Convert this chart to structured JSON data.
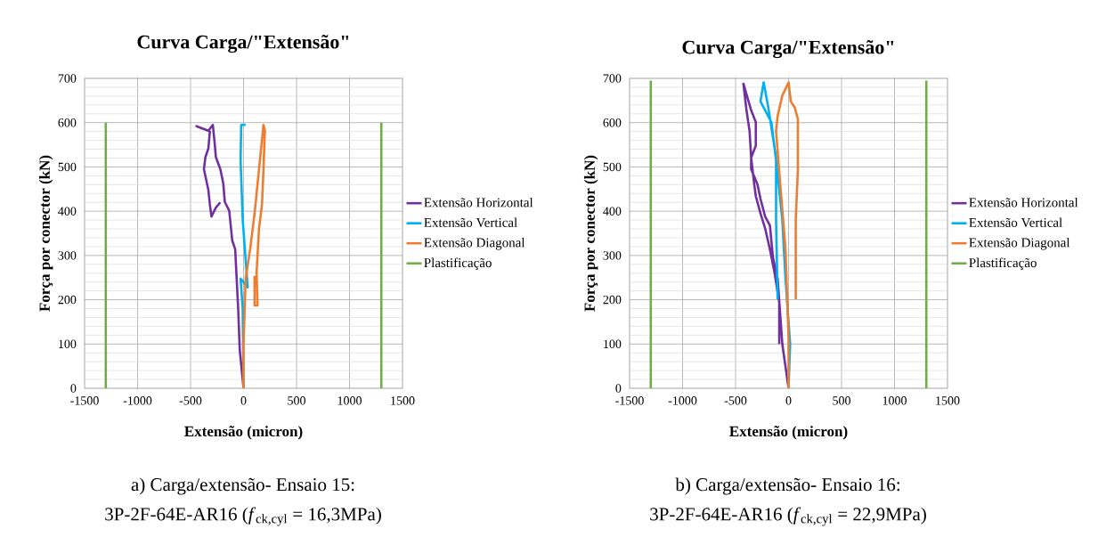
{
  "chart_data": [
    {
      "type": "line",
      "title": "Curva Carga/\"Extensão\"",
      "xlabel": "Extensão (micron)",
      "ylabel": "Força por conector (kN)",
      "xlim": [
        -1500,
        1500
      ],
      "ylim": [
        0,
        700
      ],
      "xticks": [
        -1500,
        -1000,
        -500,
        0,
        500,
        1000,
        1500
      ],
      "yticks": [
        0,
        100,
        200,
        300,
        400,
        500,
        600,
        700
      ],
      "grid": true,
      "legend": "right",
      "series": [
        {
          "name": "Extensão Horizontal",
          "color": "#7030a0",
          "x": [
            0,
            -36,
            -51,
            -79,
            -107,
            -135,
            -177,
            -191,
            -219,
            -261,
            -276,
            -290,
            -332,
            -444,
            -318,
            -332,
            -360,
            -374,
            -332,
            -318,
            -303,
            -261,
            -220
          ],
          "values": [
            0,
            87,
            181,
            314,
            334,
            401,
            421,
            462,
            495,
            522,
            562,
            595,
            582,
            592,
            580,
            542,
            522,
            495,
            448,
            415,
            388,
            408,
            420
          ]
        },
        {
          "name": "Extensão Vertical",
          "color": "#00b0f0",
          "x": [
            0,
            -8,
            -28,
            39,
            -8,
            -28,
            -22,
            20
          ],
          "values": [
            0,
            181,
            248,
            228,
            381,
            515,
            595,
            595
          ]
        },
        {
          "name": "Extensão Diagonal",
          "color": "#ed7d31",
          "x": [
            0,
            0,
            20,
            62,
            104,
            146,
            188,
            201,
            188,
            174,
            146,
            123,
            132,
            104,
            104
          ],
          "values": [
            0,
            100,
            248,
            314,
            395,
            495,
            595,
            582,
            495,
            415,
            361,
            261,
            187,
            187,
            254
          ]
        },
        {
          "name": "Plastificação",
          "color": "#70ad47",
          "x": [
            -1300,
            -1300,
            null,
            1300,
            1300
          ],
          "values": [
            0,
            600,
            null,
            0,
            600
          ]
        }
      ],
      "annotations": [
        "a) Carga/extensão- Ensaio 15:",
        "3P-2F-64E-AR16 (*f*$_{ck,cyl}$ = 16,3MPa)"
      ]
    },
    {
      "type": "line",
      "title": "Curva Carga/\"Extensão\"",
      "xlabel": "Extensão (micron)",
      "ylabel": "Força por conector (kN)",
      "xlim": [
        -1500,
        1500
      ],
      "ylim": [
        0,
        700
      ],
      "xticks": [
        -1500,
        -1000,
        -500,
        0,
        500,
        1000,
        1500
      ],
      "yticks": [
        0,
        100,
        200,
        300,
        400,
        500,
        600,
        700
      ],
      "grid": true,
      "legend": "right",
      "series": [
        {
          "name": "Extensão Horizontal",
          "color": "#7030a0",
          "x": [
            0,
            -59,
            -103,
            -147,
            -176,
            -221,
            -265,
            -294,
            -353,
            -353,
            -309,
            -309,
            -353,
            -426,
            -397,
            -368,
            -353,
            -324,
            -309,
            -265,
            -221,
            -176,
            -132,
            -88,
            -88
          ],
          "values": [
            0,
            100,
            248,
            295,
            368,
            388,
            428,
            461,
            495,
            521,
            548,
            601,
            628,
            688,
            628,
            581,
            521,
            461,
            434,
            395,
            361,
            314,
            261,
            194,
            100
          ]
        },
        {
          "name": "Extensão Vertical",
          "color": "#00b0f0",
          "x": [
            0,
            15,
            -29,
            -59,
            -118,
            -162,
            -221,
            -265,
            -235,
            -191,
            -118,
            -118,
            -103
          ],
          "values": [
            0,
            100,
            248,
            381,
            515,
            601,
            628,
            648,
            691,
            634,
            521,
            381,
            201
          ]
        },
        {
          "name": "Extensão Diagonal",
          "color": "#ed7d31",
          "x": [
            0,
            0,
            -29,
            -74,
            -118,
            -103,
            -59,
            0,
            21,
            59,
            88,
            88,
            68,
            68
          ],
          "values": [
            0,
            114,
            315,
            448,
            581,
            615,
            661,
            691,
            648,
            634,
            608,
            494,
            381,
            201
          ]
        },
        {
          "name": "Plastificação",
          "color": "#70ad47",
          "x": [
            -1300,
            -1300,
            null,
            1300,
            1300
          ],
          "values": [
            0,
            695,
            null,
            0,
            695
          ]
        }
      ],
      "annotations": [
        "b) Carga/extensão- Ensaio 16:",
        "3P-2F-64E-AR16 (*f*$_{ck,cyl}$ = 22,9MPa)"
      ]
    }
  ]
}
